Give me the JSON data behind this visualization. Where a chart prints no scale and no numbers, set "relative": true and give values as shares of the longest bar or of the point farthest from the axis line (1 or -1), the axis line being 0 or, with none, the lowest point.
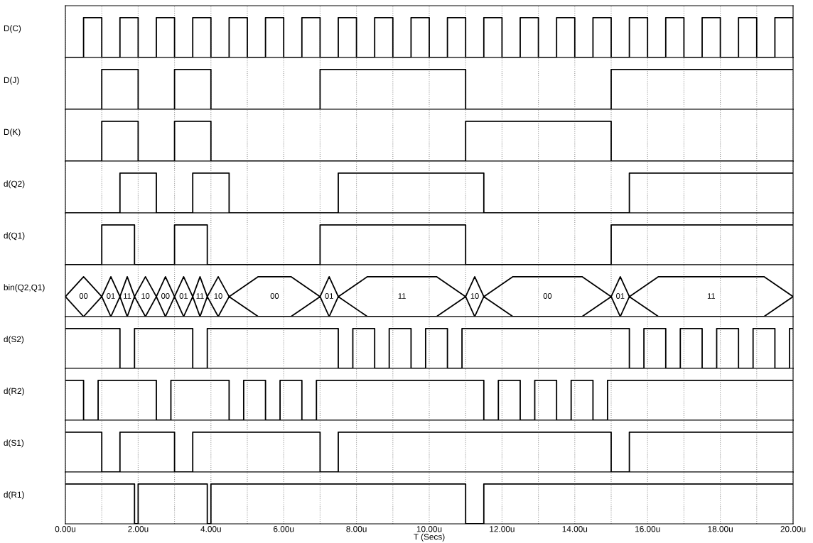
{
  "chart_data": [
    {
      "type": "step",
      "ylabel": "D(C)",
      "relative": true,
      "color": "#000000",
      "grid": "x",
      "tick_labels": false,
      "xlim": [
        0,
        20
      ],
      "xticks": [
        {
          "value": 0,
          "label": null
        },
        {
          "value": 1,
          "label": null
        },
        {
          "value": 2,
          "label": null
        },
        {
          "value": 3,
          "label": null
        },
        {
          "value": 4,
          "label": null
        },
        {
          "value": 5,
          "label": null
        },
        {
          "value": 6,
          "label": null
        },
        {
          "value": 7,
          "label": null
        },
        {
          "value": 8,
          "label": null
        },
        {
          "value": 9,
          "label": null
        },
        {
          "value": 10,
          "label": null
        },
        {
          "value": 11,
          "label": null
        },
        {
          "value": 12,
          "label": null
        },
        {
          "value": 13,
          "label": null
        },
        {
          "value": 14,
          "label": null
        },
        {
          "value": 15,
          "label": null
        },
        {
          "value": 16,
          "label": null
        },
        {
          "value": 17,
          "label": null
        },
        {
          "value": 18,
          "label": null
        },
        {
          "value": 19,
          "label": null
        },
        {
          "value": 20,
          "label": null
        }
      ],
      "x": [
        0,
        0.5,
        1,
        1.5,
        2,
        2.5,
        3,
        3.5,
        4,
        4.5,
        5,
        5.5,
        6,
        6.5,
        7,
        7.5,
        8,
        8.5,
        9,
        9.5,
        10,
        10.5,
        11,
        11.5,
        12,
        12.5,
        13,
        13.5,
        14,
        14.5,
        15,
        15.5,
        16,
        16.5,
        17,
        17.5,
        18,
        18.5,
        19,
        19.5,
        20
      ],
      "values": [
        0,
        1,
        0,
        1,
        0,
        1,
        0,
        1,
        0,
        1,
        0,
        1,
        0,
        1,
        0,
        1,
        0,
        1,
        0,
        1,
        0,
        1,
        0,
        1,
        0,
        1,
        0,
        1,
        0,
        1,
        0,
        1,
        0,
        1,
        0,
        1,
        0,
        1,
        0,
        1,
        0
      ]
    },
    {
      "type": "step",
      "ylabel": "D(J)",
      "relative": true,
      "color": "#000000",
      "grid": "x",
      "tick_labels": false,
      "xlim": [
        0,
        20
      ],
      "xticks": [
        {
          "value": 0,
          "label": null
        },
        {
          "value": 1,
          "label": null
        },
        {
          "value": 2,
          "label": null
        },
        {
          "value": 3,
          "label": null
        },
        {
          "value": 4,
          "label": null
        },
        {
          "value": 5,
          "label": null
        },
        {
          "value": 6,
          "label": null
        },
        {
          "value": 7,
          "label": null
        },
        {
          "value": 8,
          "label": null
        },
        {
          "value": 9,
          "label": null
        },
        {
          "value": 10,
          "label": null
        },
        {
          "value": 11,
          "label": null
        },
        {
          "value": 12,
          "label": null
        },
        {
          "value": 13,
          "label": null
        },
        {
          "value": 14,
          "label": null
        },
        {
          "value": 15,
          "label": null
        },
        {
          "value": 16,
          "label": null
        },
        {
          "value": 17,
          "label": null
        },
        {
          "value": 18,
          "label": null
        },
        {
          "value": 19,
          "label": null
        },
        {
          "value": 20,
          "label": null
        }
      ],
      "x": [
        0,
        1,
        2,
        3,
        4,
        7,
        11,
        15,
        20
      ],
      "values": [
        0,
        1,
        0,
        1,
        0,
        1,
        0,
        1,
        1
      ]
    },
    {
      "type": "step",
      "ylabel": "D(K)",
      "relative": true,
      "color": "#000000",
      "grid": "x",
      "tick_labels": false,
      "xlim": [
        0,
        20
      ],
      "xticks": [
        {
          "value": 0,
          "label": null
        },
        {
          "value": 1,
          "label": null
        },
        {
          "value": 2,
          "label": null
        },
        {
          "value": 3,
          "label": null
        },
        {
          "value": 4,
          "label": null
        },
        {
          "value": 5,
          "label": null
        },
        {
          "value": 6,
          "label": null
        },
        {
          "value": 7,
          "label": null
        },
        {
          "value": 8,
          "label": null
        },
        {
          "value": 9,
          "label": null
        },
        {
          "value": 10,
          "label": null
        },
        {
          "value": 11,
          "label": null
        },
        {
          "value": 12,
          "label": null
        },
        {
          "value": 13,
          "label": null
        },
        {
          "value": 14,
          "label": null
        },
        {
          "value": 15,
          "label": null
        },
        {
          "value": 16,
          "label": null
        },
        {
          "value": 17,
          "label": null
        },
        {
          "value": 18,
          "label": null
        },
        {
          "value": 19,
          "label": null
        },
        {
          "value": 20,
          "label": null
        }
      ],
      "x": [
        0,
        1,
        2,
        3,
        4,
        11,
        15,
        20
      ],
      "values": [
        0,
        1,
        0,
        1,
        0,
        1,
        0,
        0
      ]
    },
    {
      "type": "step",
      "ylabel": "d(Q2)",
      "relative": true,
      "color": "#000000",
      "grid": "x",
      "tick_labels": false,
      "xlim": [
        0,
        20
      ],
      "xticks": [
        {
          "value": 0,
          "label": null
        },
        {
          "value": 1,
          "label": null
        },
        {
          "value": 2,
          "label": null
        },
        {
          "value": 3,
          "label": null
        },
        {
          "value": 4,
          "label": null
        },
        {
          "value": 5,
          "label": null
        },
        {
          "value": 6,
          "label": null
        },
        {
          "value": 7,
          "label": null
        },
        {
          "value": 8,
          "label": null
        },
        {
          "value": 9,
          "label": null
        },
        {
          "value": 10,
          "label": null
        },
        {
          "value": 11,
          "label": null
        },
        {
          "value": 12,
          "label": null
        },
        {
          "value": 13,
          "label": null
        },
        {
          "value": 14,
          "label": null
        },
        {
          "value": 15,
          "label": null
        },
        {
          "value": 16,
          "label": null
        },
        {
          "value": 17,
          "label": null
        },
        {
          "value": 18,
          "label": null
        },
        {
          "value": 19,
          "label": null
        },
        {
          "value": 20,
          "label": null
        }
      ],
      "x": [
        0,
        1.5,
        2.5,
        3.5,
        4.5,
        7.5,
        11.5,
        15.5,
        20
      ],
      "values": [
        0,
        1,
        0,
        1,
        0,
        1,
        0,
        1,
        1
      ]
    },
    {
      "type": "step",
      "ylabel": "d(Q1)",
      "relative": true,
      "color": "#000000",
      "grid": "x",
      "tick_labels": false,
      "xlim": [
        0,
        20
      ],
      "xticks": [
        {
          "value": 0,
          "label": null
        },
        {
          "value": 1,
          "label": null
        },
        {
          "value": 2,
          "label": null
        },
        {
          "value": 3,
          "label": null
        },
        {
          "value": 4,
          "label": null
        },
        {
          "value": 5,
          "label": null
        },
        {
          "value": 6,
          "label": null
        },
        {
          "value": 7,
          "label": null
        },
        {
          "value": 8,
          "label": null
        },
        {
          "value": 9,
          "label": null
        },
        {
          "value": 10,
          "label": null
        },
        {
          "value": 11,
          "label": null
        },
        {
          "value": 12,
          "label": null
        },
        {
          "value": 13,
          "label": null
        },
        {
          "value": 14,
          "label": null
        },
        {
          "value": 15,
          "label": null
        },
        {
          "value": 16,
          "label": null
        },
        {
          "value": 17,
          "label": null
        },
        {
          "value": 18,
          "label": null
        },
        {
          "value": 19,
          "label": null
        },
        {
          "value": 20,
          "label": null
        }
      ],
      "x": [
        0,
        1,
        1.9,
        3,
        3.9,
        7,
        11,
        15,
        20
      ],
      "values": [
        0,
        1,
        0,
        1,
        0,
        1,
        0,
        1,
        1
      ]
    },
    {
      "type": "line",
      "ylabel": "bin(Q2,Q1)",
      "relative": true,
      "grid": "x",
      "tick_labels": false,
      "xlim": [
        0,
        20
      ],
      "xticks": [
        {
          "value": 0,
          "label": null
        },
        {
          "value": 1,
          "label": null
        },
        {
          "value": 2,
          "label": null
        },
        {
          "value": 3,
          "label": null
        },
        {
          "value": 4,
          "label": null
        },
        {
          "value": 5,
          "label": null
        },
        {
          "value": 6,
          "label": null
        },
        {
          "value": 7,
          "label": null
        },
        {
          "value": 8,
          "label": null
        },
        {
          "value": 9,
          "label": null
        },
        {
          "value": 10,
          "label": null
        },
        {
          "value": 11,
          "label": null
        },
        {
          "value": 12,
          "label": null
        },
        {
          "value": 13,
          "label": null
        },
        {
          "value": 14,
          "label": null
        },
        {
          "value": 15,
          "label": null
        },
        {
          "value": 16,
          "label": null
        },
        {
          "value": 17,
          "label": null
        },
        {
          "value": 18,
          "label": null
        },
        {
          "value": 19,
          "label": null
        },
        {
          "value": 20,
          "label": null
        }
      ],
      "x": [
        0,
        0.5,
        1,
        1.25,
        1.5,
        1.7,
        1.9,
        2.2,
        2.5,
        2.75,
        3,
        3.25,
        3.5,
        3.7,
        3.9,
        4.2,
        4.5,
        5.3,
        6.2,
        7,
        7.25,
        7.5,
        8.3,
        10.2,
        11,
        11.25,
        11.5,
        12.3,
        14.2,
        15,
        15.25,
        15.5,
        16.3,
        19.2,
        20
      ],
      "series": [
        {
          "color": "#000000",
          "values": [
            0.5,
            1,
            0.5,
            1,
            0.5,
            1,
            0.5,
            1,
            0.5,
            1,
            0.5,
            1,
            0.5,
            1,
            0.5,
            1,
            0.5,
            1,
            1,
            0.5,
            1,
            0.5,
            1,
            1,
            0.5,
            1,
            0.5,
            1,
            1,
            0.5,
            1,
            0.5,
            1,
            1,
            0.5
          ]
        },
        {
          "color": "#000000",
          "values": [
            0.5,
            0,
            0.5,
            0,
            0.5,
            0,
            0.5,
            0,
            0.5,
            0,
            0.5,
            0,
            0.5,
            0,
            0.5,
            0,
            0.5,
            0,
            0,
            0.5,
            0,
            0.5,
            0,
            0,
            0.5,
            0,
            0.5,
            0,
            0,
            0.5,
            0,
            0.5,
            0,
            0,
            0.5
          ]
        }
      ],
      "annotations": [
        "00",
        "01",
        "11",
        "10",
        "00",
        "01",
        "11",
        "10",
        "00",
        "01",
        "11",
        "10",
        "00",
        "01",
        "11"
      ]
    },
    {
      "type": "step",
      "ylabel": "d(S2)",
      "relative": true,
      "color": "#000000",
      "grid": "x",
      "tick_labels": false,
      "xlim": [
        0,
        20
      ],
      "xticks": [
        {
          "value": 0,
          "label": null
        },
        {
          "value": 1,
          "label": null
        },
        {
          "value": 2,
          "label": null
        },
        {
          "value": 3,
          "label": null
        },
        {
          "value": 4,
          "label": null
        },
        {
          "value": 5,
          "label": null
        },
        {
          "value": 6,
          "label": null
        },
        {
          "value": 7,
          "label": null
        },
        {
          "value": 8,
          "label": null
        },
        {
          "value": 9,
          "label": null
        },
        {
          "value": 10,
          "label": null
        },
        {
          "value": 11,
          "label": null
        },
        {
          "value": 12,
          "label": null
        },
        {
          "value": 13,
          "label": null
        },
        {
          "value": 14,
          "label": null
        },
        {
          "value": 15,
          "label": null
        },
        {
          "value": 16,
          "label": null
        },
        {
          "value": 17,
          "label": null
        },
        {
          "value": 18,
          "label": null
        },
        {
          "value": 19,
          "label": null
        },
        {
          "value": 20,
          "label": null
        }
      ],
      "x": [
        0,
        1.5,
        1.9,
        3.5,
        3.9,
        7.5,
        7.9,
        8.5,
        8.9,
        9.5,
        9.9,
        10.5,
        10.9,
        15.5,
        15.9,
        16.5,
        16.9,
        17.5,
        17.9,
        18.5,
        18.9,
        19.5,
        19.9,
        20
      ],
      "values": [
        1,
        0,
        1,
        0,
        1,
        0,
        1,
        0,
        1,
        0,
        1,
        0,
        1,
        0,
        1,
        0,
        1,
        0,
        1,
        0,
        1,
        0,
        1,
        1
      ]
    },
    {
      "type": "step",
      "ylabel": "d(R2)",
      "relative": true,
      "color": "#000000",
      "grid": "x",
      "tick_labels": false,
      "xlim": [
        0,
        20
      ],
      "xticks": [
        {
          "value": 0,
          "label": null
        },
        {
          "value": 1,
          "label": null
        },
        {
          "value": 2,
          "label": null
        },
        {
          "value": 3,
          "label": null
        },
        {
          "value": 4,
          "label": null
        },
        {
          "value": 5,
          "label": null
        },
        {
          "value": 6,
          "label": null
        },
        {
          "value": 7,
          "label": null
        },
        {
          "value": 8,
          "label": null
        },
        {
          "value": 9,
          "label": null
        },
        {
          "value": 10,
          "label": null
        },
        {
          "value": 11,
          "label": null
        },
        {
          "value": 12,
          "label": null
        },
        {
          "value": 13,
          "label": null
        },
        {
          "value": 14,
          "label": null
        },
        {
          "value": 15,
          "label": null
        },
        {
          "value": 16,
          "label": null
        },
        {
          "value": 17,
          "label": null
        },
        {
          "value": 18,
          "label": null
        },
        {
          "value": 19,
          "label": null
        },
        {
          "value": 20,
          "label": null
        }
      ],
      "x": [
        0,
        0.5,
        0.9,
        2.5,
        2.9,
        4.5,
        4.9,
        5.5,
        5.9,
        6.5,
        6.9,
        11.5,
        11.9,
        12.5,
        12.9,
        13.5,
        13.9,
        14.5,
        14.9,
        20
      ],
      "values": [
        1,
        0,
        1,
        0,
        1,
        0,
        1,
        0,
        1,
        0,
        1,
        0,
        1,
        0,
        1,
        0,
        1,
        0,
        1,
        1
      ]
    },
    {
      "type": "step",
      "ylabel": "d(S1)",
      "relative": true,
      "color": "#000000",
      "grid": "x",
      "tick_labels": false,
      "xlim": [
        0,
        20
      ],
      "xticks": [
        {
          "value": 0,
          "label": null
        },
        {
          "value": 1,
          "label": null
        },
        {
          "value": 2,
          "label": null
        },
        {
          "value": 3,
          "label": null
        },
        {
          "value": 4,
          "label": null
        },
        {
          "value": 5,
          "label": null
        },
        {
          "value": 6,
          "label": null
        },
        {
          "value": 7,
          "label": null
        },
        {
          "value": 8,
          "label": null
        },
        {
          "value": 9,
          "label": null
        },
        {
          "value": 10,
          "label": null
        },
        {
          "value": 11,
          "label": null
        },
        {
          "value": 12,
          "label": null
        },
        {
          "value": 13,
          "label": null
        },
        {
          "value": 14,
          "label": null
        },
        {
          "value": 15,
          "label": null
        },
        {
          "value": 16,
          "label": null
        },
        {
          "value": 17,
          "label": null
        },
        {
          "value": 18,
          "label": null
        },
        {
          "value": 19,
          "label": null
        },
        {
          "value": 20,
          "label": null
        }
      ],
      "x": [
        0,
        1,
        1.5,
        3,
        3.5,
        7,
        7.5,
        15,
        15.5,
        20
      ],
      "values": [
        1,
        0,
        1,
        0,
        1,
        0,
        1,
        0,
        1,
        1
      ]
    },
    {
      "type": "step",
      "ylabel": "d(R1)",
      "xlabel": "T (Secs)",
      "relative": true,
      "color": "#000000",
      "grid": "x",
      "tick_labels": "x",
      "xlim": [
        0,
        20
      ],
      "xticks": [
        {
          "value": 0,
          "label": "0.00u"
        },
        {
          "value": 1,
          "label": null
        },
        {
          "value": 2,
          "label": "2.00u"
        },
        {
          "value": 3,
          "label": null
        },
        {
          "value": 4,
          "label": "4.00u"
        },
        {
          "value": 5,
          "label": null
        },
        {
          "value": 6,
          "label": "6.00u"
        },
        {
          "value": 7,
          "label": null
        },
        {
          "value": 8,
          "label": "8.00u"
        },
        {
          "value": 9,
          "label": null
        },
        {
          "value": 10,
          "label": "10.00u"
        },
        {
          "value": 11,
          "label": null
        },
        {
          "value": 12,
          "label": "12.00u"
        },
        {
          "value": 13,
          "label": null
        },
        {
          "value": 14,
          "label": "14.00u"
        },
        {
          "value": 15,
          "label": null
        },
        {
          "value": 16,
          "label": "16.00u"
        },
        {
          "value": 17,
          "label": null
        },
        {
          "value": 18,
          "label": "18.00u"
        },
        {
          "value": 19,
          "label": null
        },
        {
          "value": 20,
          "label": "20.00u"
        }
      ],
      "x": [
        0,
        1.9,
        2.0,
        3.9,
        4.0,
        11,
        11.5,
        20
      ],
      "values": [
        1,
        0,
        1,
        0,
        1,
        0,
        1,
        1
      ]
    }
  ]
}
